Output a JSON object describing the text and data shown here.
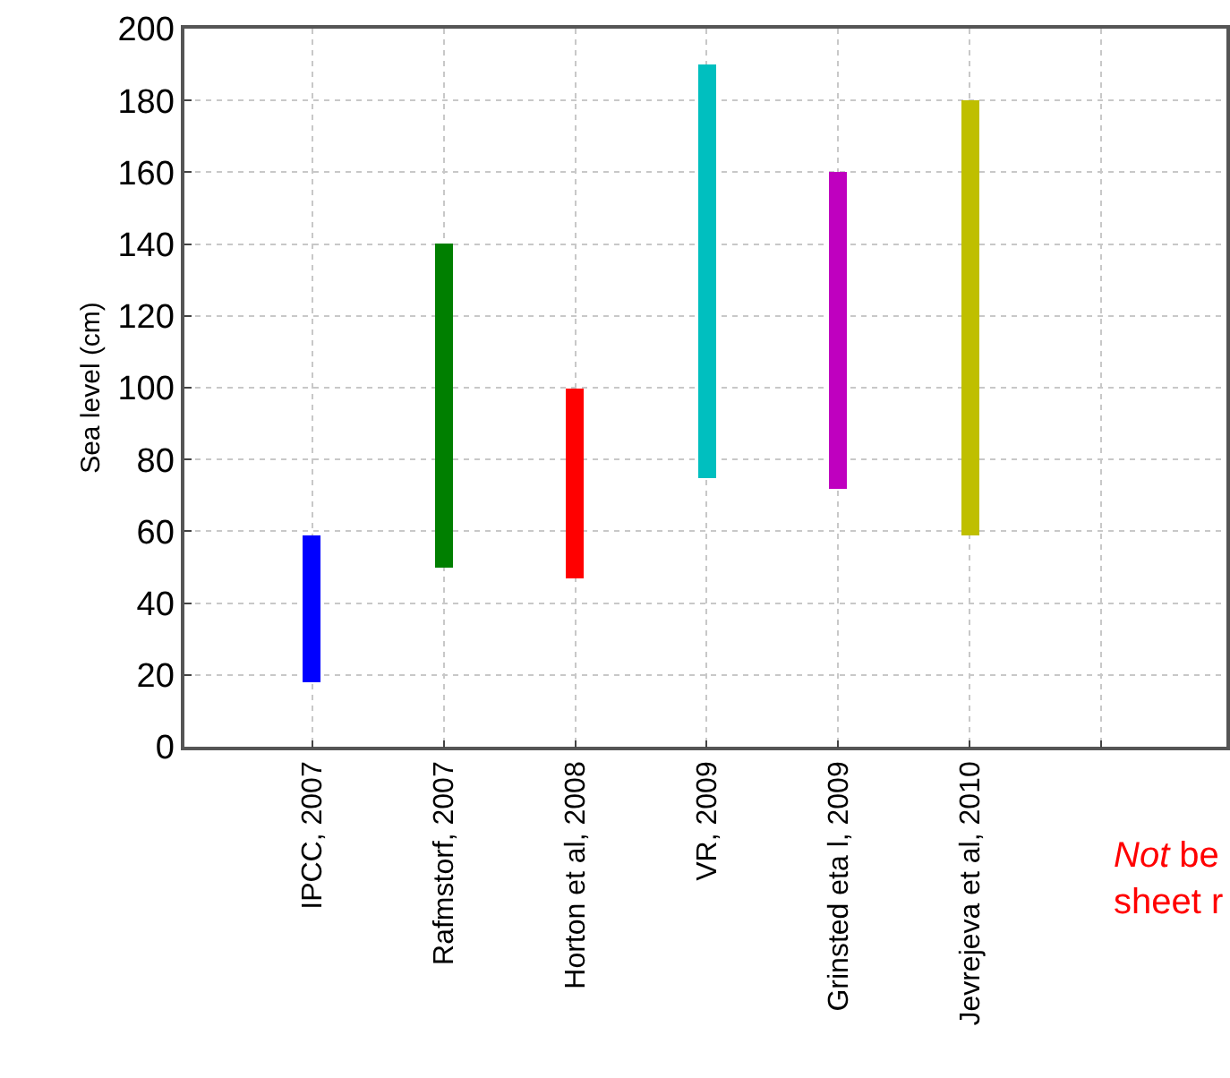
{
  "chart_data": {
    "type": "bar",
    "categories": [
      "IPCC, 2007",
      "Rafmstorf, 2007",
      "Horton et al, 2008",
      "VR, 2009",
      "Grinsted eta l, 2009",
      "Jevrejeva et al, 2010",
      null
    ],
    "base": [
      18,
      50,
      47,
      75,
      72,
      59,
      null
    ],
    "values": [
      41,
      90,
      53,
      115,
      88,
      121,
      null
    ],
    "colors": [
      "#0000ff",
      "#007f00",
      "#ff0000",
      "#00bfbf",
      "#bf00bf",
      "#bfbf00",
      "#000000"
    ],
    "ylabel": "Sea level (cm)",
    "ylim": [
      0,
      200
    ],
    "yticks": [
      0,
      20,
      40,
      60,
      80,
      100,
      120,
      140,
      160,
      180,
      200
    ],
    "grid": true,
    "annotations": [
      "Not be\nsheet r"
    ]
  }
}
